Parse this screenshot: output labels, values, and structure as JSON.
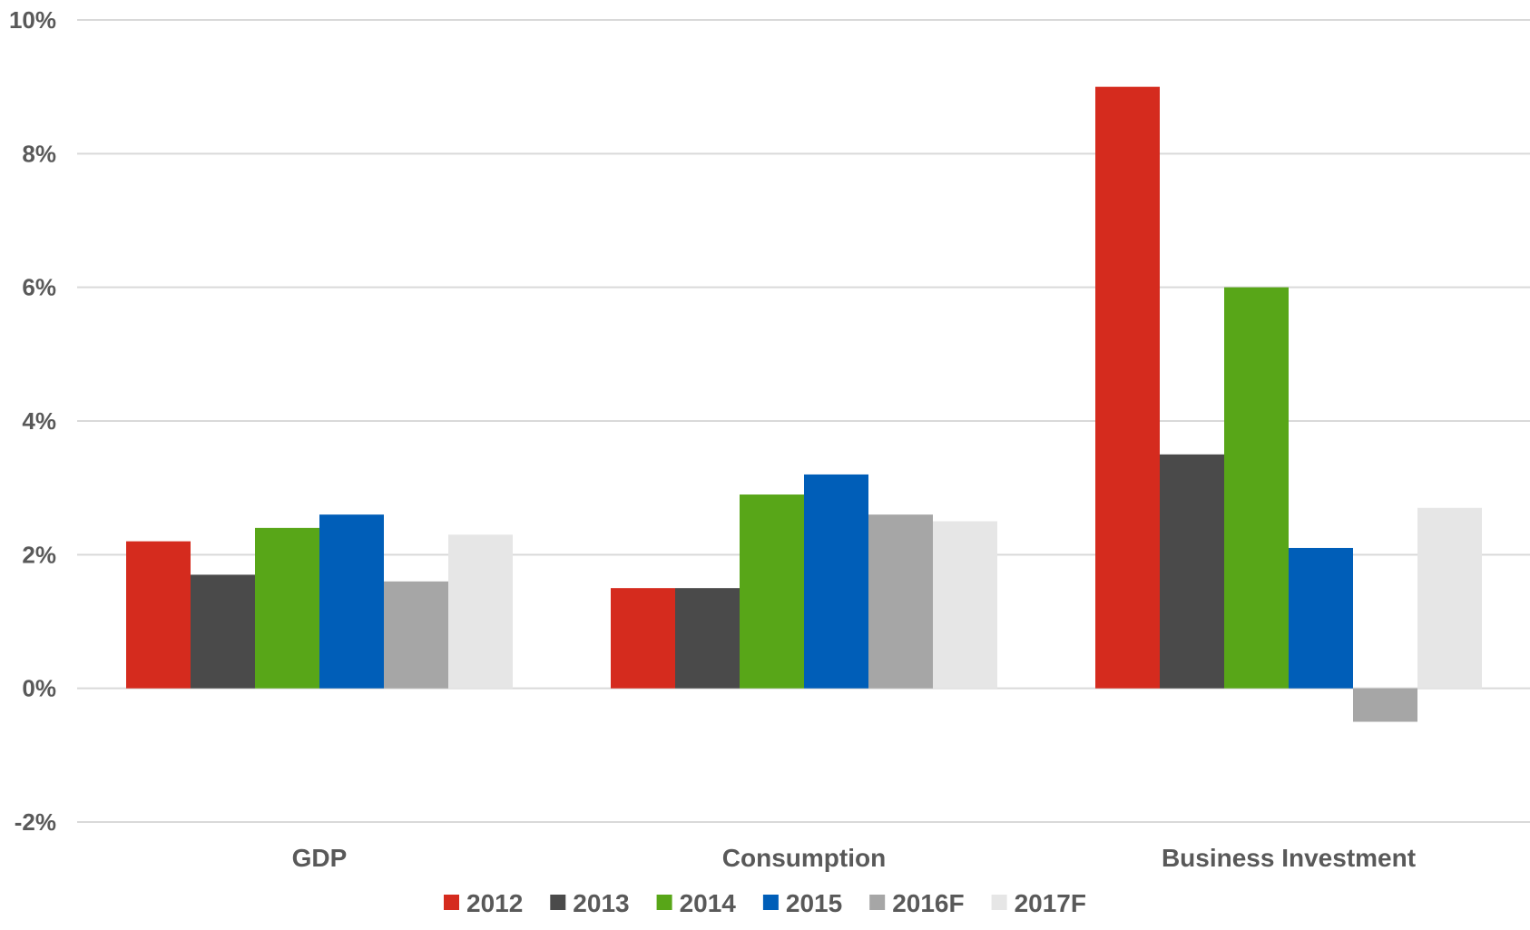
{
  "chart_data": {
    "type": "bar",
    "title": "",
    "xlabel": "",
    "ylabel": "",
    "categories": [
      "GDP",
      "Consumption",
      "Business Investment"
    ],
    "ylim": [
      -2,
      10
    ],
    "y_ticks": [
      -2,
      0,
      2,
      4,
      6,
      8,
      10
    ],
    "y_tick_labels": [
      "-2%",
      "0%",
      "2%",
      "4%",
      "6%",
      "8%",
      "10%"
    ],
    "grid": true,
    "legend_position": "bottom",
    "series": [
      {
        "name": "2012",
        "color": "#d52b1e",
        "values": [
          2.2,
          1.5,
          9.0
        ]
      },
      {
        "name": "2013",
        "color": "#4a4a4a",
        "values": [
          1.7,
          1.5,
          3.5
        ]
      },
      {
        "name": "2014",
        "color": "#58a618",
        "values": [
          2.4,
          2.9,
          6.0
        ]
      },
      {
        "name": "2015",
        "color": "#005eb8",
        "values": [
          2.6,
          3.2,
          2.1
        ]
      },
      {
        "name": "2016F",
        "color": "#a6a6a6",
        "values": [
          1.6,
          2.6,
          -0.5
        ]
      },
      {
        "name": "2017F",
        "color": "#e6e6e6",
        "values": [
          2.3,
          2.5,
          2.7
        ]
      }
    ]
  }
}
